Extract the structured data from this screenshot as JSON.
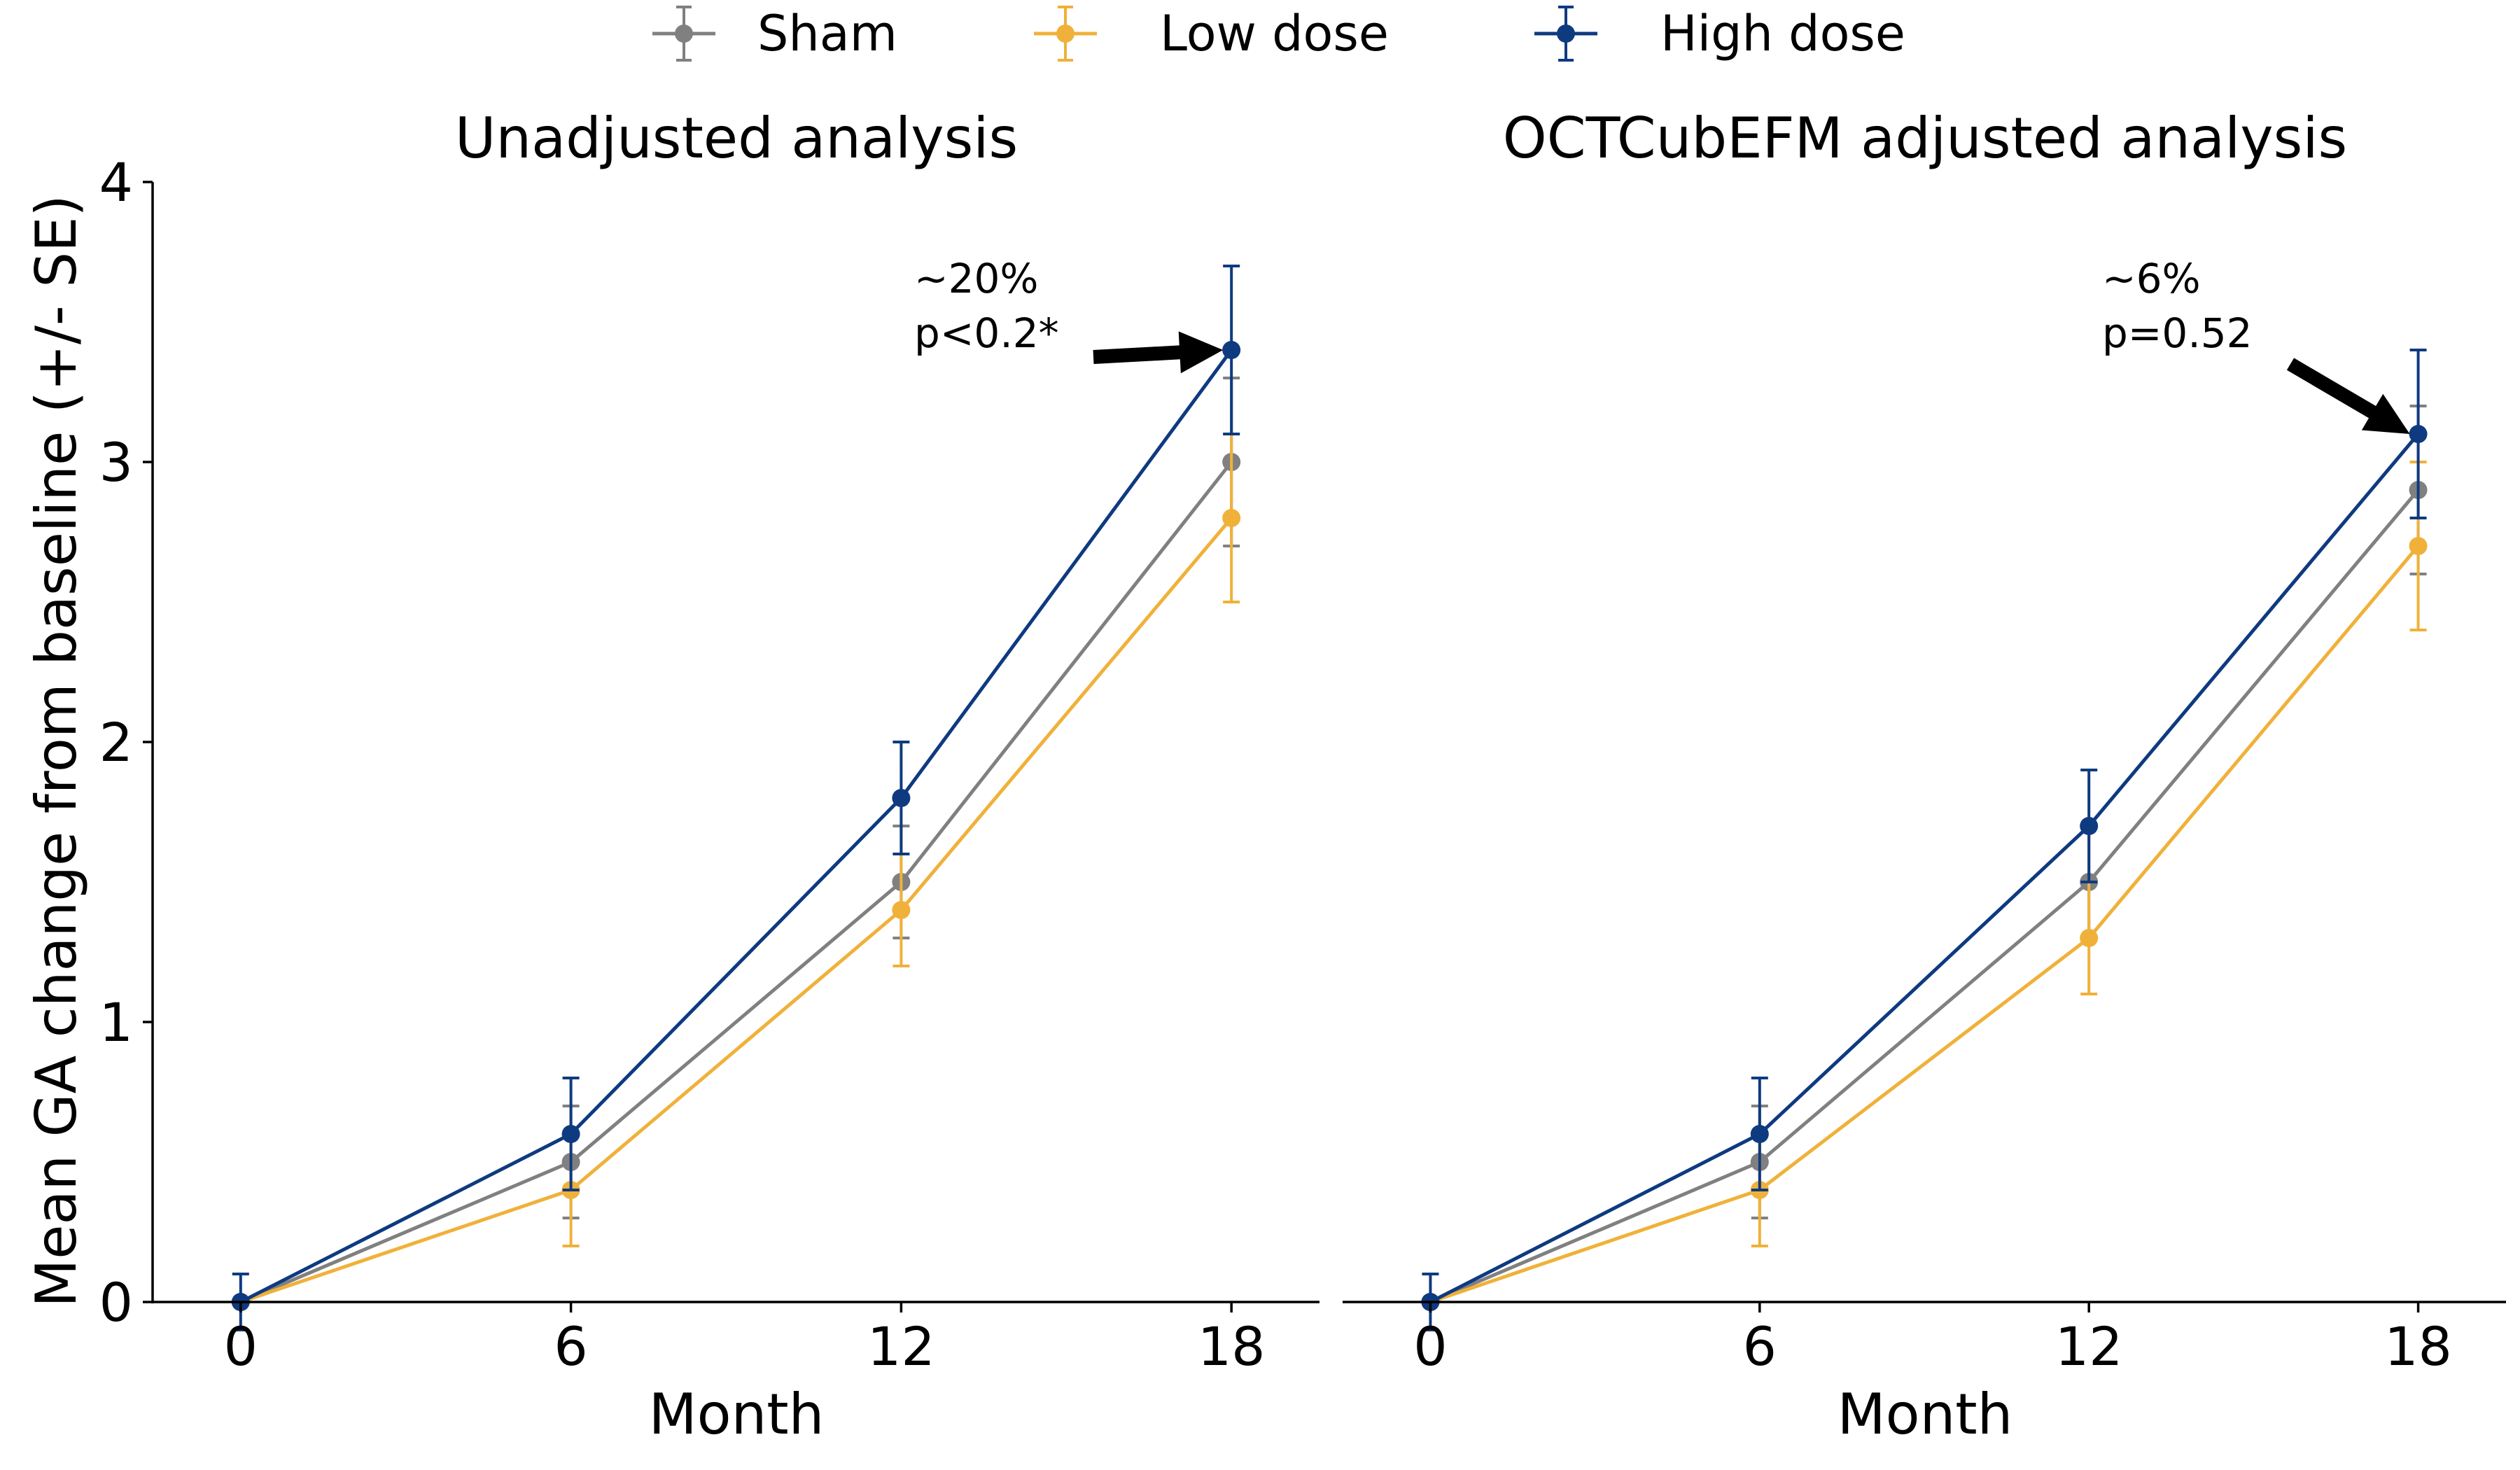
{
  "chart_data": {
    "type": "line",
    "legend": {
      "placement": "top-center",
      "entries": [
        {
          "name": "Sham",
          "color": "#808080"
        },
        {
          "name": "Low dose",
          "color": "#F0B13A"
        },
        {
          "name": "High dose",
          "color": "#0E3A80"
        }
      ]
    },
    "ylabel": "Mean GA change from baseline (+/- SE)",
    "ylim": [
      0,
      4
    ],
    "yticks": [
      "0",
      "1",
      "2",
      "3",
      "4"
    ],
    "xlim": [
      -1.6,
      19.6
    ],
    "xticks": [
      "0",
      "6",
      "12",
      "18"
    ],
    "grid": false,
    "panels": [
      {
        "title": "Unadjusted analysis",
        "xlabel": "Month",
        "x": [
          0,
          6,
          12,
          18
        ],
        "series": [
          {
            "name": "Sham",
            "color": "#808080",
            "values": [
              0,
              0.5,
              1.5,
              3.0
            ],
            "se": [
              0,
              0.2,
              0.2,
              0.3
            ]
          },
          {
            "name": "Low dose",
            "color": "#F0B13A",
            "values": [
              0,
              0.4,
              1.4,
              2.8
            ],
            "se": [
              0,
              0.2,
              0.2,
              0.3
            ]
          },
          {
            "name": "High dose",
            "color": "#0E3A80",
            "values": [
              0,
              0.6,
              1.8,
              3.4
            ],
            "se": [
              0.1,
              0.2,
              0.2,
              0.3
            ]
          }
        ],
        "annotation": {
          "line1": "~20%",
          "line2": "p<0.2*",
          "target_x": 18,
          "target_y": 3.4
        }
      },
      {
        "title": "OCTCubEFM adjusted analysis",
        "xlabel": "Month",
        "x": [
          0,
          6,
          12,
          18
        ],
        "series": [
          {
            "name": "Sham",
            "color": "#808080",
            "values": [
              0,
              0.5,
              1.5,
              2.9
            ],
            "se": [
              0,
              0.2,
              0.2,
              0.3
            ]
          },
          {
            "name": "Low dose",
            "color": "#F0B13A",
            "values": [
              0,
              0.4,
              1.3,
              2.7
            ],
            "se": [
              0,
              0.2,
              0.2,
              0.3
            ]
          },
          {
            "name": "High dose",
            "color": "#0E3A80",
            "values": [
              0,
              0.6,
              1.7,
              3.1
            ],
            "se": [
              0.1,
              0.2,
              0.2,
              0.3
            ]
          }
        ],
        "annotation": {
          "line1": "~6%",
          "line2": "p=0.52",
          "target_x": 18,
          "target_y": 3.1
        }
      }
    ]
  }
}
